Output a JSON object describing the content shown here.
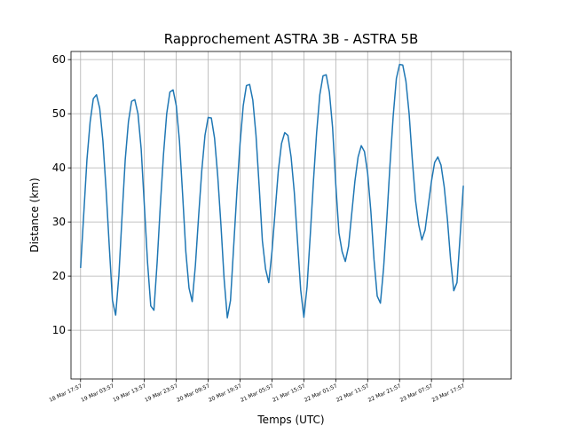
{
  "chart_data": {
    "type": "line",
    "title": "Rapprochement ASTRA 3B - ASTRA 5B",
    "xlabel": "Temps (UTC)",
    "ylabel": "Distance (km)",
    "grid": true,
    "ylim": [
      1,
      61.5
    ],
    "xlim": [
      "2022-03-18T14:57",
      "2022-03-24T08:57"
    ],
    "line_color": "#1f77b4",
    "xtick_labels": [
      "18 Mar 17:57",
      "19 Mar 03:57",
      "19 Mar 13:57",
      "19 Mar 23:57",
      "20 Mar 09:57",
      "20 Mar 19:57",
      "21 Mar 05:57",
      "21 Mar 15:57",
      "22 Mar 01:57",
      "22 Mar 11:57",
      "22 Mar 21:57",
      "23 Mar 07:57",
      "23 Mar 17:57"
    ],
    "xtick_values": [
      "2022-03-18T17:57",
      "2022-03-19T03:57",
      "2022-03-19T13:57",
      "2022-03-19T23:57",
      "2022-03-20T09:57",
      "2022-03-20T19:57",
      "2022-03-21T05:57",
      "2022-03-21T15:57",
      "2022-03-22T01:57",
      "2022-03-22T11:57",
      "2022-03-22T21:57",
      "2022-03-23T07:57",
      "2022-03-23T17:57"
    ],
    "yticks": [
      10,
      20,
      30,
      40,
      50,
      60
    ],
    "series": [
      {
        "x": [
          "2022-03-18T17:57",
          "2022-03-18T18:57",
          "2022-03-18T19:57",
          "2022-03-18T20:57",
          "2022-03-18T21:57",
          "2022-03-18T22:57",
          "2022-03-18T23:57",
          "2022-03-19T00:57",
          "2022-03-19T01:57",
          "2022-03-19T02:57",
          "2022-03-19T03:57",
          "2022-03-19T04:57",
          "2022-03-19T05:57",
          "2022-03-19T06:57",
          "2022-03-19T07:57",
          "2022-03-19T08:57",
          "2022-03-19T09:57",
          "2022-03-19T10:57",
          "2022-03-19T11:57",
          "2022-03-19T12:57",
          "2022-03-19T13:57",
          "2022-03-19T14:57",
          "2022-03-19T15:57",
          "2022-03-19T16:57",
          "2022-03-19T17:57",
          "2022-03-19T18:57",
          "2022-03-19T19:57",
          "2022-03-19T20:57",
          "2022-03-19T21:57",
          "2022-03-19T22:57",
          "2022-03-19T23:57",
          "2022-03-20T00:57",
          "2022-03-20T01:57",
          "2022-03-20T02:57",
          "2022-03-20T03:57",
          "2022-03-20T04:57",
          "2022-03-20T05:57",
          "2022-03-20T06:57",
          "2022-03-20T07:57",
          "2022-03-20T08:57",
          "2022-03-20T09:57",
          "2022-03-20T10:57",
          "2022-03-20T11:57",
          "2022-03-20T12:57",
          "2022-03-20T13:57",
          "2022-03-20T14:57",
          "2022-03-20T15:57",
          "2022-03-20T16:57",
          "2022-03-20T17:57",
          "2022-03-20T18:57",
          "2022-03-20T19:57",
          "2022-03-20T20:57",
          "2022-03-20T21:57",
          "2022-03-20T22:57",
          "2022-03-20T23:57",
          "2022-03-21T00:57",
          "2022-03-21T01:57",
          "2022-03-21T02:57",
          "2022-03-21T03:57",
          "2022-03-21T04:57",
          "2022-03-21T05:57",
          "2022-03-21T06:57",
          "2022-03-21T07:57",
          "2022-03-21T08:57",
          "2022-03-21T09:57",
          "2022-03-21T10:57",
          "2022-03-21T11:57",
          "2022-03-21T12:57",
          "2022-03-21T13:57",
          "2022-03-21T14:57",
          "2022-03-21T15:57",
          "2022-03-21T16:57",
          "2022-03-21T17:57",
          "2022-03-21T18:57",
          "2022-03-21T19:57",
          "2022-03-21T20:57",
          "2022-03-21T21:57",
          "2022-03-21T22:57",
          "2022-03-21T23:57",
          "2022-03-22T00:57",
          "2022-03-22T01:57",
          "2022-03-22T02:57",
          "2022-03-22T03:57",
          "2022-03-22T04:57",
          "2022-03-22T05:57",
          "2022-03-22T06:57",
          "2022-03-22T07:57",
          "2022-03-22T08:57",
          "2022-03-22T09:57",
          "2022-03-22T10:57",
          "2022-03-22T11:57",
          "2022-03-22T12:57",
          "2022-03-22T13:57",
          "2022-03-22T14:57",
          "2022-03-22T15:57",
          "2022-03-22T16:57",
          "2022-03-22T17:57",
          "2022-03-22T18:57",
          "2022-03-22T19:57",
          "2022-03-22T20:57",
          "2022-03-22T21:57",
          "2022-03-22T22:57",
          "2022-03-22T23:57",
          "2022-03-23T00:57",
          "2022-03-23T01:57",
          "2022-03-23T02:57",
          "2022-03-23T03:57",
          "2022-03-23T04:57",
          "2022-03-23T05:57",
          "2022-03-23T06:57",
          "2022-03-23T07:57",
          "2022-03-23T08:57",
          "2022-03-23T09:57",
          "2022-03-23T10:57",
          "2022-03-23T11:57",
          "2022-03-23T12:57",
          "2022-03-23T13:57",
          "2022-03-23T14:57",
          "2022-03-23T15:57",
          "2022-03-23T16:57",
          "2022-03-23T17:57"
        ],
        "y": [
          21.5,
          31.5,
          41.5,
          48.5,
          52.8,
          53.5,
          51,
          45,
          36,
          25.5,
          15.5,
          12.8,
          20,
          31,
          41.5,
          48.5,
          52.3,
          52.6,
          50,
          43.5,
          33,
          22.5,
          14.5,
          13.7,
          22.5,
          33,
          42.5,
          50,
          54,
          54.4,
          51.5,
          45,
          35,
          24.5,
          17.8,
          15.3,
          22,
          31,
          39.5,
          46,
          49.3,
          49.2,
          45.5,
          38.5,
          29.5,
          19.5,
          12.3,
          15.5,
          25.5,
          35.5,
          44.5,
          51.5,
          55.2,
          55.4,
          52.5,
          46,
          36.5,
          26.5,
          21.3,
          18.8,
          24.5,
          32,
          39.5,
          44.5,
          46.5,
          46,
          42,
          35.5,
          26.5,
          17.5,
          12.4,
          18,
          27.5,
          37.5,
          46.5,
          53.5,
          57,
          57.2,
          54,
          47.5,
          37,
          28,
          24.5,
          22.7,
          25.5,
          31.5,
          37.5,
          42,
          44.1,
          43,
          39,
          32,
          23,
          16.3,
          15,
          21.5,
          30.5,
          40.5,
          49.5,
          56.5,
          59.1,
          59,
          56,
          50,
          41.5,
          34,
          29.5,
          26.7,
          28.5,
          33,
          37.5,
          41,
          42,
          40.5,
          36.5,
          30.5,
          23,
          17.3,
          18.8,
          27.5,
          36.7
        ]
      }
    ]
  }
}
